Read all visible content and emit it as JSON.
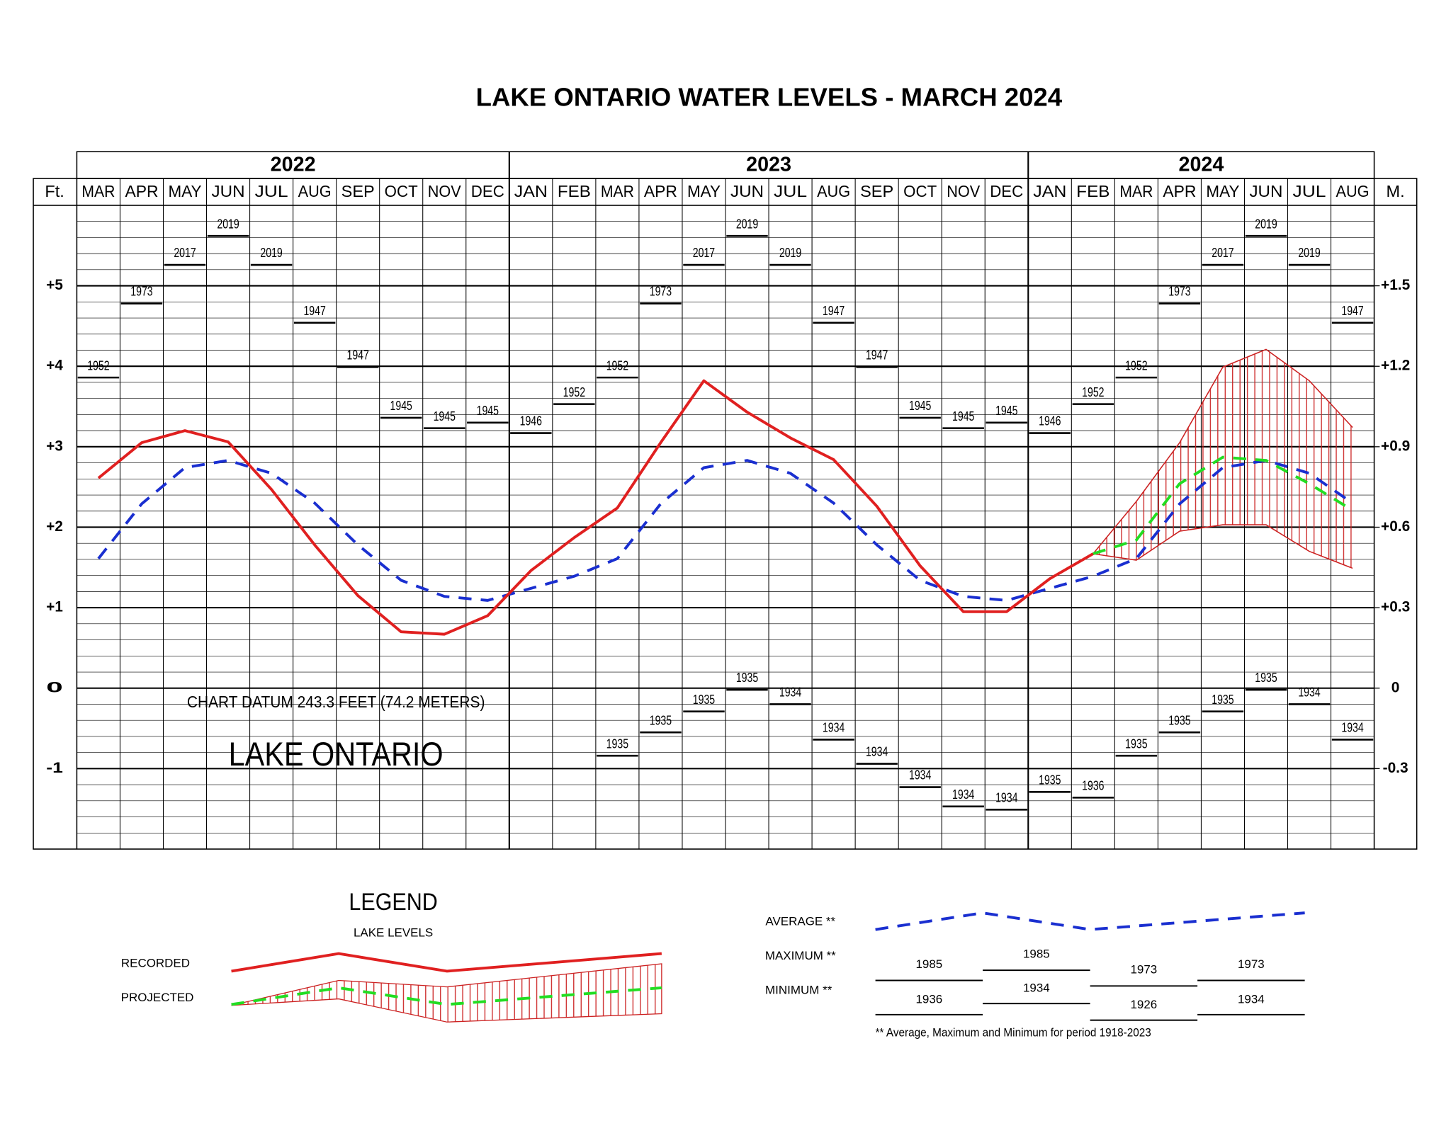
{
  "chart_data": {
    "type": "line",
    "title": "LAKE ONTARIO WATER LEVELS - MARCH 2024",
    "y_axis_label": "Ft.",
    "y2_axis_label": "M.",
    "year_groups": [
      {
        "label": "2022",
        "categories": [
          "MAR",
          "APR",
          "MAY",
          "JUN",
          "JUL",
          "AUG",
          "SEP",
          "OCT",
          "NOV",
          "DEC"
        ]
      },
      {
        "label": "2023",
        "categories": [
          "JAN",
          "FEB",
          "MAR",
          "APR",
          "MAY",
          "JUN",
          "JUL",
          "AUG",
          "SEP",
          "OCT",
          "NOV",
          "DEC"
        ]
      },
      {
        "label": "2024",
        "categories": [
          "JAN",
          "FEB",
          "MAR",
          "APR",
          "MAY",
          "JUN",
          "JUL",
          "AUG"
        ]
      }
    ],
    "ylim": [
      -2,
      6
    ],
    "yticks": [
      -1,
      0,
      {
        "value": 1,
        "label": "+1"
      },
      {
        "value": 2,
        "label": "+2"
      },
      {
        "value": 3,
        "label": "+3"
      },
      {
        "value": 4,
        "label": "+4"
      },
      {
        "value": 5,
        "label": "+5"
      }
    ],
    "y2lim": [
      -0.6,
      1.8
    ],
    "y2ticks": [
      -0.3,
      0,
      {
        "value": 0.3,
        "label": "+0.3"
      },
      {
        "value": 0.6,
        "label": "+0.6"
      },
      {
        "value": 0.9,
        "label": "+0.9"
      },
      {
        "value": 1.2,
        "label": "+1.2"
      },
      {
        "value": 1.5,
        "label": "+1.5"
      }
    ],
    "minor_step": 0.2,
    "grid": true,
    "series": [
      {
        "name": "RECORDED",
        "color": "#e02020",
        "style": "solid",
        "values": [
          2.61,
          3.05,
          3.2,
          3.06,
          2.47,
          1.78,
          1.15,
          0.7,
          0.67,
          0.9,
          1.46,
          1.87,
          2.24,
          3.05,
          3.82,
          3.43,
          3.11,
          2.84,
          2.26,
          1.52,
          0.95,
          0.95,
          1.36,
          1.67,
          null,
          null,
          null,
          null,
          null,
          null
        ]
      },
      {
        "name": "AVERAGE **",
        "color": "#1a2fd0",
        "style": "dashed",
        "values": [
          1.61,
          2.29,
          2.74,
          2.83,
          2.67,
          2.3,
          1.78,
          1.34,
          1.14,
          1.09,
          1.24,
          1.39,
          1.61,
          2.29,
          2.74,
          2.83,
          2.67,
          2.3,
          1.78,
          1.34,
          1.14,
          1.09,
          1.24,
          1.39,
          1.61,
          2.29,
          2.74,
          2.83,
          2.67,
          2.3
        ]
      },
      {
        "name": "PROJECTED",
        "color": "#22dd22",
        "style": "dashed",
        "values": [
          null,
          null,
          null,
          null,
          null,
          null,
          null,
          null,
          null,
          null,
          null,
          null,
          null,
          null,
          null,
          null,
          null,
          null,
          null,
          null,
          null,
          null,
          null,
          1.67,
          1.84,
          2.54,
          2.87,
          2.83,
          2.54,
          2.21
        ]
      }
    ],
    "projected_range": {
      "color": "#cc2222",
      "max": [
        null,
        null,
        null,
        null,
        null,
        null,
        null,
        null,
        null,
        null,
        null,
        null,
        null,
        null,
        null,
        null,
        null,
        null,
        null,
        null,
        null,
        null,
        null,
        1.67,
        2.32,
        3.05,
        3.99,
        4.21,
        3.82,
        3.24
      ],
      "min": [
        null,
        null,
        null,
        null,
        null,
        null,
        null,
        null,
        null,
        null,
        null,
        null,
        null,
        null,
        null,
        null,
        null,
        null,
        null,
        null,
        null,
        null,
        null,
        1.67,
        1.59,
        1.95,
        2.03,
        2.03,
        1.7,
        1.49
      ]
    },
    "records": {
      "color": "#000000",
      "max": {
        "values": [
          3.86,
          4.78,
          5.26,
          5.62,
          5.26,
          4.54,
          3.99,
          3.36,
          3.23,
          3.3,
          3.17,
          3.53,
          3.86,
          4.78,
          5.26,
          5.62,
          5.26,
          4.54,
          3.99,
          3.36,
          3.23,
          3.3,
          3.17,
          3.53,
          3.86,
          4.78,
          5.26,
          5.62,
          5.26,
          4.54
        ],
        "years": [
          1952,
          1973,
          2017,
          2019,
          2019,
          1947,
          1947,
          1945,
          1945,
          1945,
          1946,
          1952,
          1952,
          1973,
          2017,
          2019,
          2019,
          1947,
          1947,
          1945,
          1945,
          1945,
          1946,
          1952,
          1952,
          1973,
          2017,
          2019,
          2019,
          1947
        ]
      },
      "min": {
        "values": [
          null,
          null,
          null,
          null,
          null,
          null,
          null,
          null,
          null,
          null,
          null,
          null,
          -0.84,
          -0.55,
          -0.29,
          -0.02,
          -0.2,
          -0.64,
          -0.94,
          -1.23,
          -1.47,
          -1.51,
          -1.29,
          -1.36,
          -0.84,
          -0.55,
          -0.29,
          -0.02,
          -0.2,
          -0.64
        ],
        "years": [
          null,
          null,
          null,
          null,
          null,
          null,
          null,
          null,
          null,
          null,
          null,
          null,
          1935,
          1935,
          1935,
          1935,
          1934,
          1934,
          1934,
          1934,
          1934,
          1934,
          1935,
          1936,
          1935,
          1935,
          1935,
          1935,
          1934,
          1934
        ]
      }
    },
    "annotations": [
      "CHART DATUM  243.3 FEET (74.2 METERS)",
      "LAKE ONTARIO"
    ],
    "legend": {
      "title": "LEGEND",
      "subtitle": "LAKE LEVELS",
      "maximum_label": "MAXIMUM **",
      "minimum_label": "MINIMUM **",
      "maximum_samples": [
        1985,
        1985,
        1973,
        1973
      ],
      "minimum_samples": [
        1936,
        1934,
        1926,
        1934
      ],
      "footnote": "** Average, Maximum and Minimum for period 1918-2023"
    }
  }
}
